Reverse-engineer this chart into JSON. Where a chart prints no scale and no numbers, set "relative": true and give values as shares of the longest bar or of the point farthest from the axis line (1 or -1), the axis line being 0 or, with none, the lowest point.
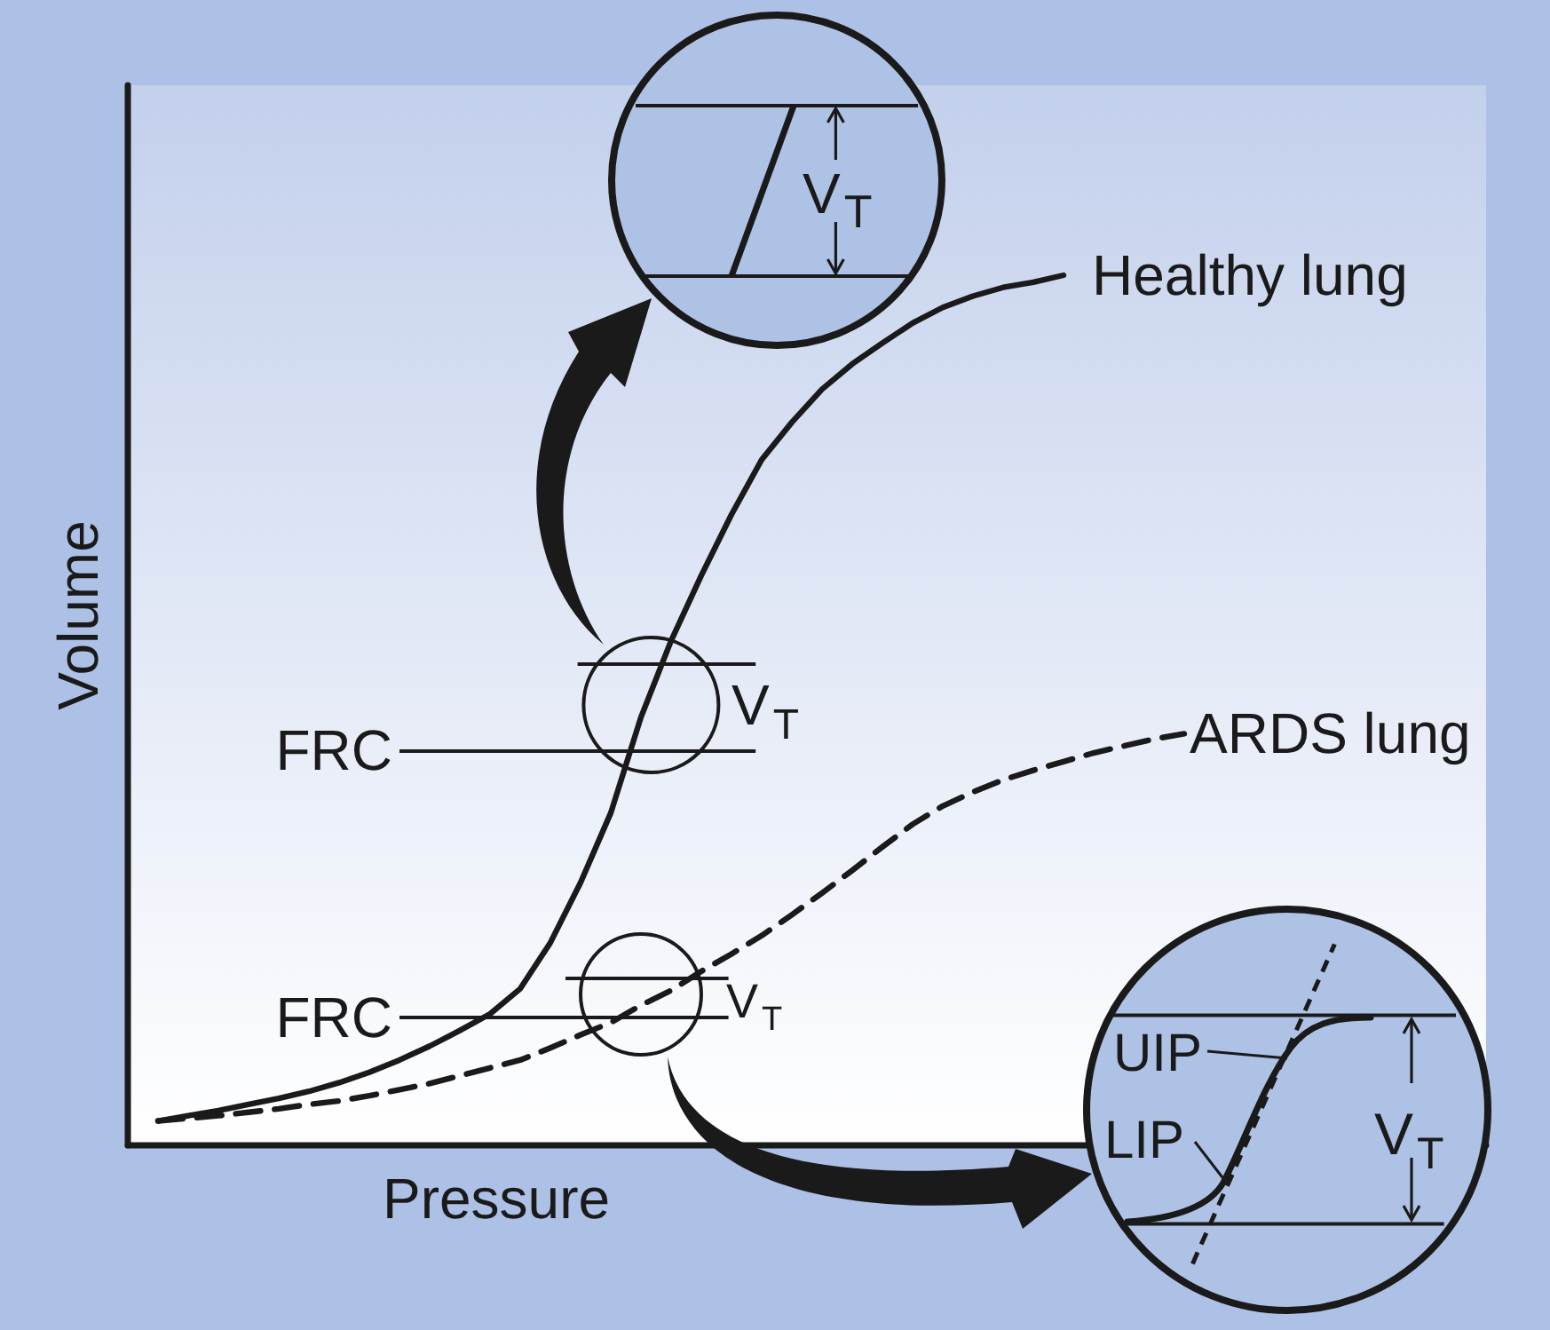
{
  "chart_data": {
    "type": "line",
    "relative": true,
    "xlabel": "Pressure",
    "ylabel": "Volume",
    "marker": "none",
    "categories": [
      null,
      null,
      null,
      null,
      null,
      null,
      null,
      null,
      null,
      null,
      null,
      null,
      null,
      null,
      null,
      null,
      null,
      null,
      null,
      null,
      null,
      null,
      null,
      null,
      null,
      null,
      null,
      null,
      null,
      null,
      null,
      null,
      null,
      null,
      null,
      null,
      null,
      null,
      null,
      null,
      null,
      null,
      null,
      null,
      null,
      null
    ],
    "series": [
      {
        "name": "Healthy lung",
        "color": "#1a1a1a",
        "line_style": "solid",
        "values": [
          null,
          0.028,
          0.034,
          0.04,
          0.047,
          0.054,
          0.062,
          0.072,
          0.084,
          0.098,
          0.114,
          0.132,
          0.151,
          0.18,
          0.233,
          0.302,
          0.382,
          0.492,
          0.58,
          0.655,
          0.725,
          0.788,
          0.831,
          0.869,
          0.898,
          0.922,
          0.945,
          0.963,
          0.976,
          0.986,
          0.992,
          1,
          null,
          null,
          null,
          null,
          null,
          null,
          null,
          null,
          null,
          null,
          null,
          null,
          null,
          null
        ]
      },
      {
        "name": "ARDS lung",
        "color": "#1a1a1a",
        "line_style": "dashed",
        "values": [
          null,
          0.028,
          0.031,
          0.034,
          0.038,
          0.042,
          0.047,
          0.051,
          0.057,
          0.064,
          0.071,
          0.08,
          0.089,
          0.098,
          0.112,
          0.127,
          0.141,
          0.161,
          0.178,
          0.2,
          0.22,
          0.241,
          0.265,
          0.29,
          0.316,
          0.343,
          0.369,
          0.39,
          0.406,
          0.42,
          0.431,
          0.441,
          0.451,
          0.459,
          0.467,
          0.473,
          null,
          null,
          null,
          null,
          null,
          null,
          null,
          null,
          null,
          null
        ]
      }
    ],
    "ref_lines": [
      {
        "axis": "y",
        "value": 0.454,
        "label": "FRC"
      },
      {
        "axis": "y",
        "value": 0.554
      },
      {
        "axis": "y",
        "value": 0.147,
        "label": "FRC"
      },
      {
        "axis": "y",
        "value": 0.192
      }
    ],
    "annotations": [
      "V$_{T}$",
      "V$_{T}$",
      "V$_{T}$",
      "UIP",
      "LIP",
      "V$_{T}$"
    ]
  }
}
